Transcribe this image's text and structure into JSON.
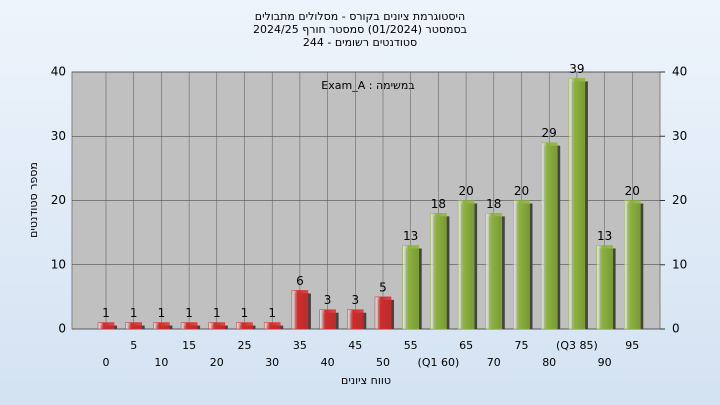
{
  "chart_data": {
    "type": "bar",
    "title": [
      "היסטוגרמת ציונים בקורס - מסלולים מתבולים",
      "בסמסטר  (01/2024)  סמסטר חורף 2024/25",
      "סטודנטים רשומים - 244"
    ],
    "annotation": "Exam_A : במשימה",
    "x_label": "טווח ציונים",
    "y_label": "מספר סטודנטים",
    "categories": [
      "0",
      "5",
      "10",
      "15",
      "20",
      "25",
      "30",
      "35",
      "40",
      "45",
      "50",
      "55",
      "(Q1 60)",
      "65",
      "70",
      "75",
      "80",
      "(Q3 85)",
      "90",
      "95"
    ],
    "values": [
      1,
      1,
      1,
      1,
      1,
      1,
      1,
      6,
      3,
      3,
      5,
      13,
      18,
      20,
      18,
      20,
      29,
      39,
      13,
      20
    ],
    "colors": [
      "#d42a2a",
      "#d42a2a",
      "#d42a2a",
      "#d42a2a",
      "#d42a2a",
      "#d42a2a",
      "#d42a2a",
      "#d42a2a",
      "#d42a2a",
      "#d42a2a",
      "#d42a2a",
      "#8cb33c",
      "#8cb33c",
      "#8cb33c",
      "#8cb33c",
      "#8cb33c",
      "#8cb33c",
      "#8cb33c",
      "#8cb33c",
      "#8cb33c"
    ],
    "ylim": [
      0,
      40
    ],
    "yticks": [
      0,
      10,
      20,
      30,
      40
    ],
    "y2lim": [
      0,
      40
    ],
    "y2ticks": [
      0,
      10,
      20,
      30,
      40
    ],
    "grid": true
  }
}
